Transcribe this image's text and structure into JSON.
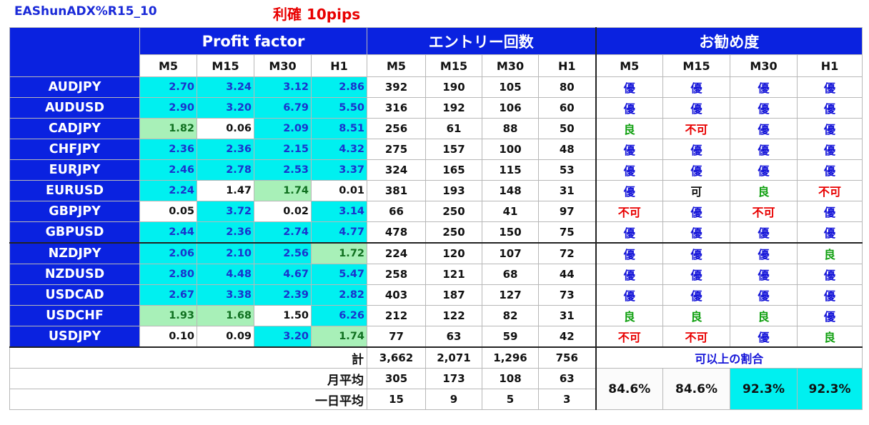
{
  "title": "EAShunADX%R15_10",
  "subtitle": "利確 10pips",
  "headers": {
    "profit_factor": "Profit factor",
    "entries": "エントリー回数",
    "recommendation": "お勧め度",
    "timeframes": [
      "M5",
      "M15",
      "M30",
      "H1"
    ]
  },
  "rows": [
    {
      "pair": "AUDJPY",
      "pf": [
        "2.70",
        "3.24",
        "3.12",
        "2.86"
      ],
      "pf_style": [
        "cyan",
        "cyan",
        "cyan",
        "cyan"
      ],
      "entries": [
        "392",
        "190",
        "105",
        "80"
      ],
      "grade": [
        "優",
        "優",
        "優",
        "優"
      ],
      "grade_style": [
        "excellent",
        "excellent",
        "excellent",
        "excellent"
      ]
    },
    {
      "pair": "AUDUSD",
      "pf": [
        "2.90",
        "3.20",
        "6.79",
        "5.50"
      ],
      "pf_style": [
        "cyan",
        "cyan",
        "cyan",
        "cyan"
      ],
      "entries": [
        "316",
        "192",
        "106",
        "60"
      ],
      "grade": [
        "優",
        "優",
        "優",
        "優"
      ],
      "grade_style": [
        "excellent",
        "excellent",
        "excellent",
        "excellent"
      ]
    },
    {
      "pair": "CADJPY",
      "pf": [
        "1.82",
        "0.06",
        "2.09",
        "8.51"
      ],
      "pf_style": [
        "green",
        "white",
        "cyan",
        "cyan"
      ],
      "entries": [
        "256",
        "61",
        "88",
        "50"
      ],
      "grade": [
        "良",
        "不可",
        "優",
        "優"
      ],
      "grade_style": [
        "good",
        "bad",
        "excellent",
        "excellent"
      ]
    },
    {
      "pair": "CHFJPY",
      "pf": [
        "2.36",
        "2.36",
        "2.15",
        "4.32"
      ],
      "pf_style": [
        "cyan",
        "cyan",
        "cyan",
        "cyan"
      ],
      "entries": [
        "275",
        "157",
        "100",
        "48"
      ],
      "grade": [
        "優",
        "優",
        "優",
        "優"
      ],
      "grade_style": [
        "excellent",
        "excellent",
        "excellent",
        "excellent"
      ]
    },
    {
      "pair": "EURJPY",
      "pf": [
        "2.46",
        "2.78",
        "2.53",
        "3.37"
      ],
      "pf_style": [
        "cyan",
        "cyan",
        "cyan",
        "cyan"
      ],
      "entries": [
        "324",
        "165",
        "115",
        "53"
      ],
      "grade": [
        "優",
        "優",
        "優",
        "優"
      ],
      "grade_style": [
        "excellent",
        "excellent",
        "excellent",
        "excellent"
      ]
    },
    {
      "pair": "EURUSD",
      "pf": [
        "2.24",
        "1.47",
        "1.74",
        "0.01"
      ],
      "pf_style": [
        "cyan",
        "white",
        "green",
        "white"
      ],
      "entries": [
        "381",
        "193",
        "148",
        "31"
      ],
      "grade": [
        "優",
        "可",
        "良",
        "不可"
      ],
      "grade_style": [
        "excellent",
        "fair",
        "good",
        "bad"
      ]
    },
    {
      "pair": "GBPJPY",
      "pf": [
        "0.05",
        "3.72",
        "0.02",
        "3.14"
      ],
      "pf_style": [
        "white",
        "cyan",
        "white",
        "cyan"
      ],
      "entries": [
        "66",
        "250",
        "41",
        "97"
      ],
      "grade": [
        "不可",
        "優",
        "不可",
        "優"
      ],
      "grade_style": [
        "bad",
        "excellent",
        "bad",
        "excellent"
      ]
    },
    {
      "pair": "GBPUSD",
      "pf": [
        "2.44",
        "2.36",
        "2.74",
        "4.77"
      ],
      "pf_style": [
        "cyan",
        "cyan",
        "cyan",
        "cyan"
      ],
      "entries": [
        "478",
        "250",
        "150",
        "75"
      ],
      "grade": [
        "優",
        "優",
        "優",
        "優"
      ],
      "grade_style": [
        "excellent",
        "excellent",
        "excellent",
        "excellent"
      ]
    },
    {
      "pair": "NZDJPY",
      "pf": [
        "2.06",
        "2.10",
        "2.56",
        "1.72"
      ],
      "pf_style": [
        "cyan",
        "cyan",
        "cyan",
        "green"
      ],
      "entries": [
        "224",
        "120",
        "107",
        "72"
      ],
      "grade": [
        "優",
        "優",
        "優",
        "良"
      ],
      "grade_style": [
        "excellent",
        "excellent",
        "excellent",
        "good"
      ]
    },
    {
      "pair": "NZDUSD",
      "pf": [
        "2.80",
        "4.48",
        "4.67",
        "5.47"
      ],
      "pf_style": [
        "cyan",
        "cyan",
        "cyan",
        "cyan"
      ],
      "entries": [
        "258",
        "121",
        "68",
        "44"
      ],
      "grade": [
        "優",
        "優",
        "優",
        "優"
      ],
      "grade_style": [
        "excellent",
        "excellent",
        "excellent",
        "excellent"
      ]
    },
    {
      "pair": "USDCAD",
      "pf": [
        "2.67",
        "3.38",
        "2.39",
        "2.82"
      ],
      "pf_style": [
        "cyan",
        "cyan",
        "cyan",
        "cyan"
      ],
      "entries": [
        "403",
        "187",
        "127",
        "73"
      ],
      "grade": [
        "優",
        "優",
        "優",
        "優"
      ],
      "grade_style": [
        "excellent",
        "excellent",
        "excellent",
        "excellent"
      ]
    },
    {
      "pair": "USDCHF",
      "pf": [
        "1.93",
        "1.68",
        "1.50",
        "6.26"
      ],
      "pf_style": [
        "green",
        "green",
        "white",
        "cyan"
      ],
      "entries": [
        "212",
        "122",
        "82",
        "31"
      ],
      "grade": [
        "良",
        "良",
        "良",
        "優"
      ],
      "grade_style": [
        "good",
        "good",
        "good",
        "excellent"
      ]
    },
    {
      "pair": "USDJPY",
      "pf": [
        "0.10",
        "0.09",
        "3.20",
        "1.74"
      ],
      "pf_style": [
        "white",
        "white",
        "cyan",
        "green"
      ],
      "entries": [
        "77",
        "63",
        "59",
        "42"
      ],
      "grade": [
        "不可",
        "不可",
        "優",
        "良"
      ],
      "grade_style": [
        "bad",
        "bad",
        "excellent",
        "good"
      ]
    }
  ],
  "summary": {
    "total_label": "計",
    "total": [
      "3,662",
      "2,071",
      "1,296",
      "756"
    ],
    "monthly_label": "月平均",
    "monthly": [
      "305",
      "173",
      "108",
      "63"
    ],
    "daily_label": "一日平均",
    "daily": [
      "15",
      "9",
      "5",
      "3"
    ],
    "ratio_label": "可以上の割合",
    "ratio": [
      "84.6%",
      "84.6%",
      "92.3%",
      "92.3%"
    ],
    "ratio_style": [
      "white",
      "white",
      "cyan",
      "cyan"
    ]
  },
  "colors": {
    "header_blue": "#0a22e0",
    "pf_cyan": "#00f0f0",
    "pf_green": "#a8f0b8",
    "grade_excellent": "#1414d8",
    "grade_good": "#10a010",
    "grade_bad": "#e80000"
  }
}
